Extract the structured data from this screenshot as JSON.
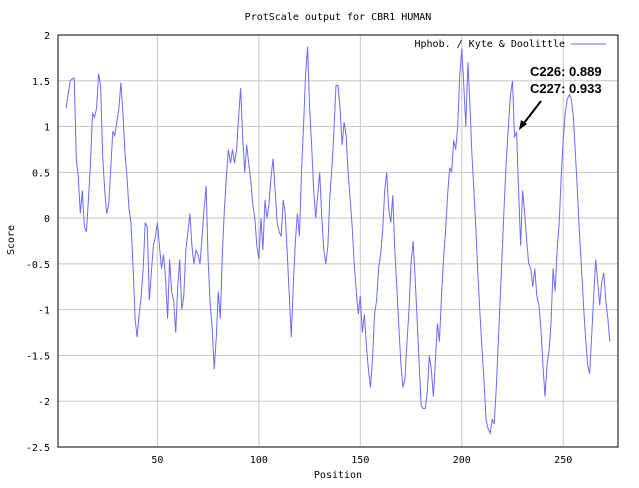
{
  "chart_data": {
    "type": "line",
    "title": "ProtScale output for CBR1 HUMAN",
    "xlabel": "Position",
    "ylabel": "Score",
    "xlim": [
      1,
      277
    ],
    "ylim": [
      -2.5,
      2
    ],
    "x_ticks": [
      50,
      100,
      150,
      200,
      250
    ],
    "y_ticks": [
      -2.5,
      -2,
      -1.5,
      -1,
      -0.5,
      0,
      0.5,
      1,
      1.5,
      2
    ],
    "x_tick_labels": [
      "50",
      "100",
      "150",
      "200",
      "250"
    ],
    "y_tick_labels": [
      "-2.5",
      "-2",
      "-1.5",
      "-1",
      "-0.5",
      "0",
      "0.5",
      "1",
      "1.5",
      "2"
    ],
    "grid": true,
    "legend_position": "top-right",
    "line_color": "#6b6bff",
    "series": [
      {
        "name": "Hphob. / Kyte & Doolittle",
        "points": [
          [
            5,
            1.2
          ],
          [
            6,
            1.35
          ],
          [
            7,
            1.5
          ],
          [
            8,
            1.52
          ],
          [
            9,
            1.53
          ],
          [
            10,
            0.65
          ],
          [
            11,
            0.45
          ],
          [
            12,
            0.05
          ],
          [
            13,
            0.3
          ],
          [
            14,
            -0.1
          ],
          [
            15,
            -0.15
          ],
          [
            16,
            0.2
          ],
          [
            17,
            0.6
          ],
          [
            18,
            1.15
          ],
          [
            19,
            1.1
          ],
          [
            20,
            1.2
          ],
          [
            21,
            1.58
          ],
          [
            22,
            1.45
          ],
          [
            23,
            0.7
          ],
          [
            24,
            0.3
          ],
          [
            25,
            0.05
          ],
          [
            26,
            0.15
          ],
          [
            27,
            0.55
          ],
          [
            28,
            0.95
          ],
          [
            29,
            0.9
          ],
          [
            30,
            1.05
          ],
          [
            31,
            1.2
          ],
          [
            32,
            1.48
          ],
          [
            33,
            1.15
          ],
          [
            34,
            0.7
          ],
          [
            35,
            0.45
          ],
          [
            36,
            0.1
          ],
          [
            37,
            -0.05
          ],
          [
            38,
            -0.55
          ],
          [
            39,
            -1.1
          ],
          [
            40,
            -1.3
          ],
          [
            41,
            -1.05
          ],
          [
            42,
            -0.85
          ],
          [
            43,
            -0.55
          ],
          [
            44,
            -0.05
          ],
          [
            45,
            -0.1
          ],
          [
            46,
            -0.9
          ],
          [
            47,
            -0.6
          ],
          [
            48,
            -0.3
          ],
          [
            49,
            -0.2
          ],
          [
            50,
            -0.05
          ],
          [
            51,
            -0.3
          ],
          [
            52,
            -0.55
          ],
          [
            53,
            -0.4
          ],
          [
            54,
            -0.65
          ],
          [
            55,
            -1.1
          ],
          [
            56,
            -0.45
          ],
          [
            57,
            -0.8
          ],
          [
            58,
            -0.9
          ],
          [
            59,
            -1.25
          ],
          [
            60,
            -0.75
          ],
          [
            61,
            -0.45
          ],
          [
            62,
            -1.0
          ],
          [
            63,
            -0.85
          ],
          [
            64,
            -0.35
          ],
          [
            65,
            -0.15
          ],
          [
            66,
            0.05
          ],
          [
            67,
            -0.3
          ],
          [
            68,
            -0.5
          ],
          [
            69,
            -0.35
          ],
          [
            70,
            -0.4
          ],
          [
            71,
            -0.5
          ],
          [
            72,
            -0.2
          ],
          [
            73,
            0.1
          ],
          [
            74,
            0.35
          ],
          [
            75,
            -0.45
          ],
          [
            76,
            -0.95
          ],
          [
            77,
            -1.2
          ],
          [
            78,
            -1.65
          ],
          [
            79,
            -1.3
          ],
          [
            80,
            -0.8
          ],
          [
            81,
            -1.1
          ],
          [
            82,
            -0.4
          ],
          [
            83,
            0.1
          ],
          [
            84,
            0.45
          ],
          [
            85,
            0.75
          ],
          [
            86,
            0.6
          ],
          [
            87,
            0.75
          ],
          [
            88,
            0.6
          ],
          [
            89,
            0.75
          ],
          [
            90,
            1.1
          ],
          [
            91,
            1.42
          ],
          [
            92,
            0.9
          ],
          [
            93,
            0.5
          ],
          [
            94,
            0.8
          ],
          [
            95,
            0.6
          ],
          [
            96,
            0.4
          ],
          [
            97,
            0.15
          ],
          [
            98,
            0.0
          ],
          [
            99,
            -0.3
          ],
          [
            100,
            -0.45
          ],
          [
            101,
            0.0
          ],
          [
            102,
            -0.35
          ],
          [
            103,
            0.2
          ],
          [
            104,
            0.0
          ],
          [
            105,
            0.15
          ],
          [
            106,
            0.45
          ],
          [
            107,
            0.65
          ],
          [
            108,
            0.3
          ],
          [
            109,
            -0.05
          ],
          [
            110,
            -0.15
          ],
          [
            111,
            -0.2
          ],
          [
            112,
            0.2
          ],
          [
            113,
            0.05
          ],
          [
            114,
            -0.4
          ],
          [
            115,
            -0.85
          ],
          [
            116,
            -1.3
          ],
          [
            117,
            -0.7
          ],
          [
            118,
            -0.25
          ],
          [
            119,
            0.05
          ],
          [
            120,
            -0.2
          ],
          [
            121,
            0.5
          ],
          [
            122,
            1.0
          ],
          [
            123,
            1.55
          ],
          [
            124,
            1.87
          ],
          [
            125,
            1.2
          ],
          [
            126,
            0.8
          ],
          [
            127,
            0.3
          ],
          [
            128,
            0.0
          ],
          [
            129,
            0.25
          ],
          [
            130,
            0.5
          ],
          [
            131,
            0.0
          ],
          [
            132,
            -0.35
          ],
          [
            133,
            -0.5
          ],
          [
            134,
            -0.3
          ],
          [
            135,
            0.25
          ],
          [
            136,
            0.55
          ],
          [
            137,
            0.95
          ],
          [
            138,
            1.45
          ],
          [
            139,
            1.45
          ],
          [
            140,
            1.2
          ],
          [
            141,
            0.8
          ],
          [
            142,
            1.05
          ],
          [
            143,
            0.9
          ],
          [
            144,
            0.5
          ],
          [
            145,
            0.2
          ],
          [
            146,
            -0.1
          ],
          [
            147,
            -0.5
          ],
          [
            148,
            -0.8
          ],
          [
            149,
            -1.05
          ],
          [
            150,
            -0.85
          ],
          [
            151,
            -1.25
          ],
          [
            152,
            -1.05
          ],
          [
            153,
            -1.4
          ],
          [
            154,
            -1.65
          ],
          [
            155,
            -1.85
          ],
          [
            156,
            -1.55
          ],
          [
            157,
            -1.05
          ],
          [
            158,
            -0.9
          ],
          [
            159,
            -0.55
          ],
          [
            160,
            -0.4
          ],
          [
            161,
            -0.15
          ],
          [
            162,
            0.3
          ],
          [
            163,
            0.5
          ],
          [
            164,
            0.1
          ],
          [
            165,
            -0.05
          ],
          [
            166,
            0.25
          ],
          [
            167,
            -0.35
          ],
          [
            168,
            -0.75
          ],
          [
            169,
            -1.2
          ],
          [
            170,
            -1.6
          ],
          [
            171,
            -1.85
          ],
          [
            172,
            -1.75
          ],
          [
            173,
            -1.35
          ],
          [
            174,
            -1.0
          ],
          [
            175,
            -0.5
          ],
          [
            176,
            -0.25
          ],
          [
            177,
            -0.65
          ],
          [
            178,
            -1.1
          ],
          [
            179,
            -1.6
          ],
          [
            180,
            -2.05
          ],
          [
            181,
            -2.08
          ],
          [
            182,
            -2.08
          ],
          [
            183,
            -1.9
          ],
          [
            184,
            -1.5
          ],
          [
            185,
            -1.65
          ],
          [
            186,
            -1.95
          ],
          [
            187,
            -1.55
          ],
          [
            188,
            -1.15
          ],
          [
            189,
            -1.35
          ],
          [
            190,
            -0.85
          ],
          [
            191,
            -0.45
          ],
          [
            192,
            -0.15
          ],
          [
            193,
            0.25
          ],
          [
            194,
            0.55
          ],
          [
            195,
            0.5
          ],
          [
            196,
            0.85
          ],
          [
            197,
            0.75
          ],
          [
            198,
            1.0
          ],
          [
            199,
            1.55
          ],
          [
            200,
            1.85
          ],
          [
            201,
            1.45
          ],
          [
            202,
            1.0
          ],
          [
            203,
            1.7
          ],
          [
            204,
            1.25
          ],
          [
            205,
            0.7
          ],
          [
            206,
            0.3
          ],
          [
            207,
            -0.15
          ],
          [
            208,
            -0.65
          ],
          [
            209,
            -1.05
          ],
          [
            210,
            -1.45
          ],
          [
            211,
            -1.8
          ],
          [
            212,
            -2.2
          ],
          [
            213,
            -2.3
          ],
          [
            214,
            -2.35
          ],
          [
            215,
            -2.2
          ],
          [
            216,
            -2.25
          ],
          [
            217,
            -1.85
          ],
          [
            218,
            -1.35
          ],
          [
            219,
            -0.85
          ],
          [
            220,
            -0.35
          ],
          [
            221,
            0.2
          ],
          [
            222,
            0.65
          ],
          [
            223,
            1.0
          ],
          [
            224,
            1.35
          ],
          [
            225,
            1.5
          ],
          [
            226,
            0.889
          ],
          [
            227,
            0.933
          ],
          [
            228,
            0.3
          ],
          [
            229,
            -0.3
          ],
          [
            230,
            0.3
          ],
          [
            231,
            0.05
          ],
          [
            232,
            -0.25
          ],
          [
            233,
            -0.5
          ],
          [
            234,
            -0.55
          ],
          [
            235,
            -0.75
          ],
          [
            236,
            -0.55
          ],
          [
            237,
            -0.85
          ],
          [
            238,
            -0.95
          ],
          [
            239,
            -1.2
          ],
          [
            240,
            -1.6
          ],
          [
            241,
            -1.95
          ],
          [
            242,
            -1.6
          ],
          [
            243,
            -1.45
          ],
          [
            244,
            -1.15
          ],
          [
            245,
            -0.55
          ],
          [
            246,
            -0.8
          ],
          [
            247,
            -0.35
          ],
          [
            248,
            -0.05
          ],
          [
            249,
            0.45
          ],
          [
            250,
            0.85
          ],
          [
            251,
            1.15
          ],
          [
            252,
            1.3
          ],
          [
            253,
            1.35
          ],
          [
            254,
            1.3
          ],
          [
            255,
            1.1
          ],
          [
            256,
            0.7
          ],
          [
            257,
            0.3
          ],
          [
            258,
            -0.15
          ],
          [
            259,
            -0.55
          ],
          [
            260,
            -0.95
          ],
          [
            261,
            -1.3
          ],
          [
            262,
            -1.6
          ],
          [
            263,
            -1.7
          ],
          [
            264,
            -1.3
          ],
          [
            265,
            -0.85
          ],
          [
            266,
            -0.45
          ],
          [
            267,
            -0.7
          ],
          [
            268,
            -0.95
          ],
          [
            269,
            -0.7
          ],
          [
            270,
            -0.6
          ],
          [
            271,
            -0.9
          ],
          [
            272,
            -1.1
          ],
          [
            273,
            -1.35
          ]
        ]
      }
    ],
    "annotations": [
      {
        "text": "C226: 0.889",
        "x": 226,
        "y": 0.889
      },
      {
        "text": "C227: 0.933",
        "x": 227,
        "y": 0.933
      }
    ]
  }
}
